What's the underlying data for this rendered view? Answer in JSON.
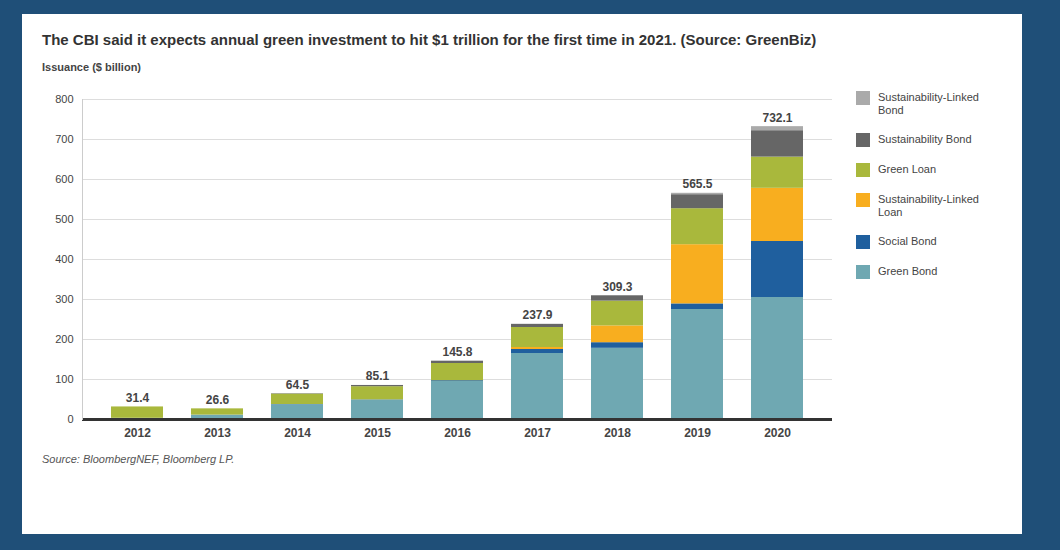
{
  "chart_data": {
    "type": "bar",
    "title": "The CBI said it expects annual green investment to hit $1 trillion for the first time in 2021. (Source: GreenBiz)",
    "y_label": "Issuance ($ billion)",
    "source": "Source: BloombergNEF, Bloomberg LP.",
    "categories": [
      "2012",
      "2013",
      "2014",
      "2015",
      "2016",
      "2017",
      "2018",
      "2019",
      "2020"
    ],
    "totals": [
      31.4,
      26.6,
      64.5,
      85.1,
      145.8,
      237.9,
      309.3,
      565.5,
      732.1
    ],
    "series": [
      {
        "name": "Green Bond",
        "color": "#6fa8b2",
        "values": [
          3.0,
          11.0,
          37.0,
          48.0,
          95.0,
          165.0,
          178.0,
          275.0,
          305.0
        ]
      },
      {
        "name": "Social Bond",
        "color": "#1f5f9e",
        "values": [
          0,
          0,
          0.5,
          1.0,
          2.0,
          10.0,
          14.0,
          14.0,
          140.0
        ]
      },
      {
        "name": "Sustainability-Linked Loan",
        "color": "#f8ae1f",
        "values": [
          0,
          0,
          0,
          0,
          0,
          5.0,
          42.0,
          148.0,
          133.0
        ]
      },
      {
        "name": "Green Loan",
        "color": "#a9b83c",
        "values": [
          28.4,
          15.6,
          26.0,
          33.0,
          43.0,
          50.0,
          62.0,
          90.0,
          78.0
        ]
      },
      {
        "name": "Sustainability Bond",
        "color": "#666666",
        "values": [
          0,
          0,
          1.0,
          3.1,
          5.8,
          7.9,
          13.3,
          35.0,
          66.0
        ]
      },
      {
        "name": "Sustainability-Linked Bond",
        "color": "#aaaaaa",
        "values": [
          0,
          0,
          0,
          0,
          0,
          0,
          0,
          3.5,
          10.1
        ]
      }
    ],
    "ylim": [
      0,
      800
    ],
    "yticks": [
      0,
      100,
      200,
      300,
      400,
      500,
      600,
      700,
      800
    ],
    "stacked": true,
    "grid": true,
    "legend": "right"
  }
}
